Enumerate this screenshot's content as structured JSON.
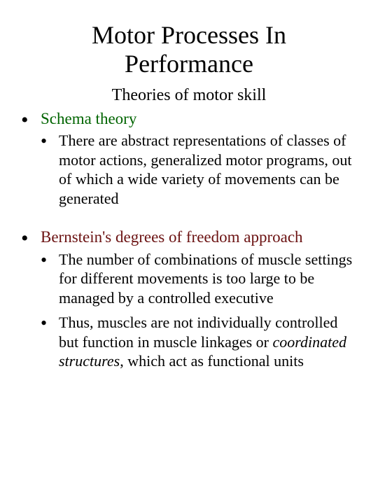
{
  "colors": {
    "background": "#ffffff",
    "text": "#000000",
    "accent_green": "#006400",
    "accent_maroon": "#6b1212"
  },
  "typography": {
    "family": "Times New Roman",
    "title_fontsize": 36,
    "subtitle_fontsize": 24,
    "top_label_fontsize": 23,
    "sub_text_fontsize": 22
  },
  "title_line1": "Motor Processes In",
  "title_line2": "Performance",
  "subtitle": "Theories of motor skill",
  "items": [
    {
      "label": "Schema theory",
      "label_color": "green",
      "subs": [
        {
          "text_before": "There are abstract representations of classes of motor actions, generalized motor programs, out of which a wide variety of movements can be generated",
          "italic": "",
          "text_after": ""
        }
      ]
    },
    {
      "label": "Bernstein's degrees of freedom approach",
      "label_color": "maroon",
      "subs": [
        {
          "text_before": "The number of combinations of muscle settings for different movements is too large to be managed by a controlled executive",
          "italic": "",
          "text_after": ""
        },
        {
          "text_before": "Thus, muscles are not individually controlled but function in muscle linkages or ",
          "italic": "coordinated structures",
          "text_after": ", which act as functional units"
        }
      ]
    }
  ]
}
